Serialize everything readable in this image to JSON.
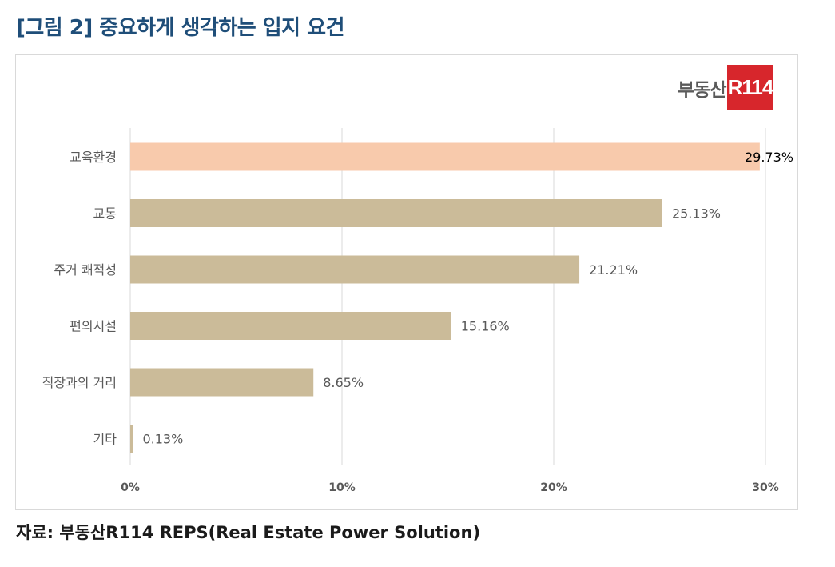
{
  "figure_title": "[그림 2] 중요하게 생각하는 입지 요건",
  "logo": {
    "text": "부동산",
    "box_text": "R114"
  },
  "source_note": "자료: 부동산R114 REPS(Real Estate Power Solution)",
  "colors": {
    "bar_default": "#cbbb99",
    "bar_highlight": "#f8caac",
    "title": "#1f4e79",
    "logo_red": "#d7262c"
  },
  "chart_data": {
    "type": "bar",
    "orientation": "horizontal",
    "title": "",
    "xlabel": "",
    "ylabel": "",
    "categories": [
      "교육환경",
      "교통",
      "주거 쾌적성",
      "편의시설",
      "직장과의 거리",
      "기타"
    ],
    "values": [
      29.73,
      25.13,
      21.21,
      15.16,
      8.65,
      0.13
    ],
    "value_labels": [
      "29.73%",
      "25.13%",
      "21.21%",
      "15.16%",
      "8.65%",
      "0.13%"
    ],
    "highlight_index": 0,
    "xlim": [
      0,
      30
    ],
    "ticks": [
      0,
      10,
      20,
      30
    ],
    "tick_labels": [
      "0%",
      "10%",
      "20%",
      "30%"
    ],
    "grid": true,
    "legend": "none"
  }
}
